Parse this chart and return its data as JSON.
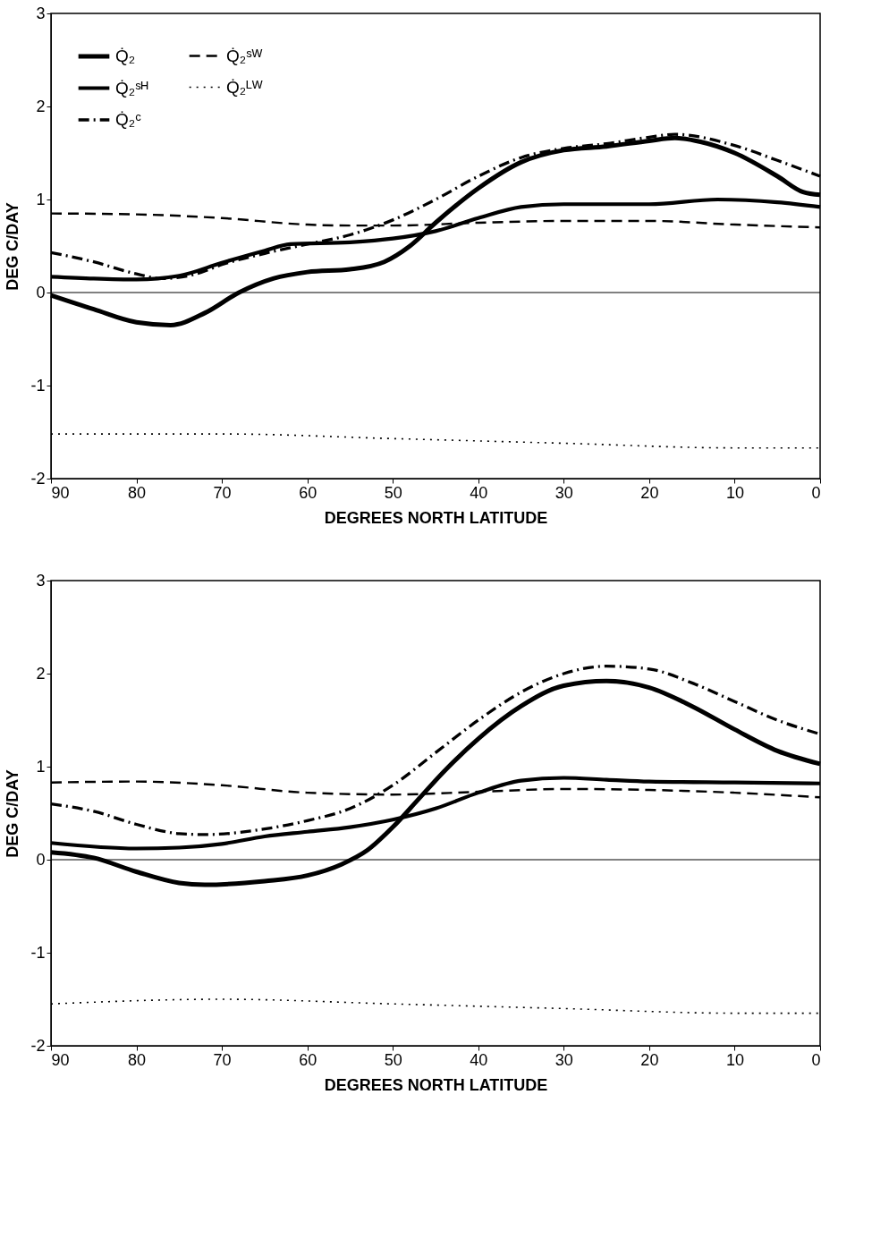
{
  "chart_data": [
    {
      "type": "line",
      "xlabel": "DEGREES NORTH LATITUDE",
      "ylabel": "DEG C/DAY",
      "xlim": [
        90,
        0
      ],
      "xticks": [
        90,
        80,
        70,
        60,
        50,
        40,
        30,
        20,
        10,
        0
      ],
      "ylim": [
        -2,
        3
      ],
      "yticks": [
        -2,
        -1,
        0,
        1,
        2,
        3
      ],
      "grid": false,
      "legend": "top left",
      "ref_lines": [
        {
          "axis": "y",
          "value": 0,
          "color": "#000000"
        }
      ],
      "series": [
        {
          "name": "Q̇₂",
          "color": "#000000",
          "line_style": "solid",
          "x": [
            90,
            85,
            80,
            76,
            72,
            68,
            64,
            60,
            55,
            51,
            48,
            45,
            40,
            35,
            30,
            25,
            20,
            17,
            14,
            10,
            5,
            2,
            0
          ],
          "values": [
            -0.03,
            -0.18,
            -0.32,
            -0.35,
            -0.22,
            0,
            0.15,
            0.22,
            0.25,
            0.33,
            0.5,
            0.75,
            1.12,
            1.4,
            1.53,
            1.57,
            1.63,
            1.66,
            1.62,
            1.5,
            1.25,
            1.08,
            1.05
          ]
        },
        {
          "name": "Q̇₂ˢᴴ",
          "color": "#000000",
          "line_style": "solid",
          "x": [
            90,
            85,
            80,
            75,
            70,
            65,
            62,
            55,
            50,
            45,
            40,
            35,
            30,
            20,
            12,
            5,
            0
          ],
          "values": [
            0.17,
            0.15,
            0.14,
            0.18,
            0.32,
            0.45,
            0.52,
            0.54,
            0.58,
            0.66,
            0.8,
            0.92,
            0.95,
            0.95,
            1.0,
            0.97,
            0.92
          ]
        },
        {
          "name": "Q̇₂ᶜ",
          "color": "#000000",
          "line_style": "dashdot",
          "x": [
            90,
            85,
            80,
            77,
            73,
            70,
            65,
            60,
            55,
            50,
            45,
            40,
            35,
            30,
            25,
            20,
            17,
            10,
            5,
            0
          ],
          "values": [
            0.43,
            0.33,
            0.2,
            0.15,
            0.2,
            0.3,
            0.42,
            0.52,
            0.62,
            0.78,
            1.0,
            1.25,
            1.45,
            1.55,
            1.6,
            1.67,
            1.7,
            1.58,
            1.42,
            1.25
          ]
        },
        {
          "name": "Q̇₂ˢᵂ",
          "color": "#000000",
          "line_style": "dashed",
          "x": [
            90,
            80,
            70,
            60,
            55,
            50,
            40,
            30,
            20,
            10,
            0
          ],
          "values": [
            0.85,
            0.84,
            0.8,
            0.73,
            0.72,
            0.72,
            0.75,
            0.77,
            0.77,
            0.73,
            0.7
          ]
        },
        {
          "name": "Q̇₂ᴸᵂ",
          "color": "#000000",
          "line_style": "dotted",
          "x": [
            90,
            70,
            50,
            30,
            10,
            0
          ],
          "values": [
            -1.52,
            -1.52,
            -1.57,
            -1.62,
            -1.67,
            -1.67
          ]
        }
      ]
    },
    {
      "type": "line",
      "xlabel": "DEGREES NORTH LATITUDE",
      "ylabel": "DEG C/DAY",
      "xlim": [
        90,
        0
      ],
      "xticks": [
        90,
        80,
        70,
        60,
        50,
        40,
        30,
        20,
        10,
        0
      ],
      "ylim": [
        -2,
        3
      ],
      "yticks": [
        -2,
        -1,
        0,
        1,
        2,
        3
      ],
      "grid": false,
      "legend": "top left",
      "ref_lines": [
        {
          "axis": "y",
          "value": 0,
          "color": "#000000"
        }
      ],
      "series": [
        {
          "name": "Q̇₂",
          "color": "#000000",
          "line_style": "solid",
          "x": [
            90,
            85,
            80,
            75,
            72,
            65,
            60,
            56,
            53,
            50,
            47,
            44,
            40,
            35,
            30,
            25,
            20,
            15,
            10,
            5,
            0
          ],
          "values": [
            0.08,
            0.02,
            -0.13,
            -0.25,
            -0.27,
            -0.23,
            -0.17,
            -0.05,
            0.1,
            0.35,
            0.65,
            0.95,
            1.3,
            1.65,
            1.87,
            1.92,
            1.85,
            1.65,
            1.4,
            1.17,
            1.03
          ]
        },
        {
          "name": "Q̇₂ˢᴴ",
          "color": "#000000",
          "line_style": "solid",
          "x": [
            90,
            80,
            75,
            70,
            65,
            60,
            55,
            50,
            45,
            40,
            35,
            30,
            25,
            20,
            10,
            0
          ],
          "values": [
            0.18,
            0.12,
            0.13,
            0.17,
            0.25,
            0.3,
            0.35,
            0.43,
            0.55,
            0.72,
            0.85,
            0.88,
            0.86,
            0.84,
            0.83,
            0.82
          ]
        },
        {
          "name": "Q̇₂ᶜ",
          "color": "#000000",
          "line_style": "dashdot",
          "x": [
            90,
            85,
            80,
            75,
            72,
            65,
            60,
            55,
            50,
            45,
            40,
            35,
            30,
            25,
            20,
            15,
            10,
            5,
            0
          ],
          "values": [
            0.6,
            0.52,
            0.38,
            0.28,
            0.27,
            0.33,
            0.42,
            0.55,
            0.8,
            1.15,
            1.5,
            1.8,
            2.0,
            2.08,
            2.05,
            1.9,
            1.7,
            1.5,
            1.35
          ]
        },
        {
          "name": "Q̇₂ˢᵂ",
          "color": "#000000",
          "line_style": "dashed",
          "x": [
            90,
            80,
            70,
            60,
            50,
            40,
            30,
            20,
            10,
            0
          ],
          "values": [
            0.83,
            0.84,
            0.8,
            0.72,
            0.7,
            0.73,
            0.76,
            0.75,
            0.72,
            0.67
          ]
        },
        {
          "name": "Q̇₂ᴸᵂ",
          "color": "#000000",
          "line_style": "dotted",
          "x": [
            90,
            70,
            50,
            30,
            10,
            0
          ],
          "values": [
            -1.55,
            -1.5,
            -1.55,
            -1.6,
            -1.65,
            -1.65
          ]
        }
      ]
    }
  ]
}
